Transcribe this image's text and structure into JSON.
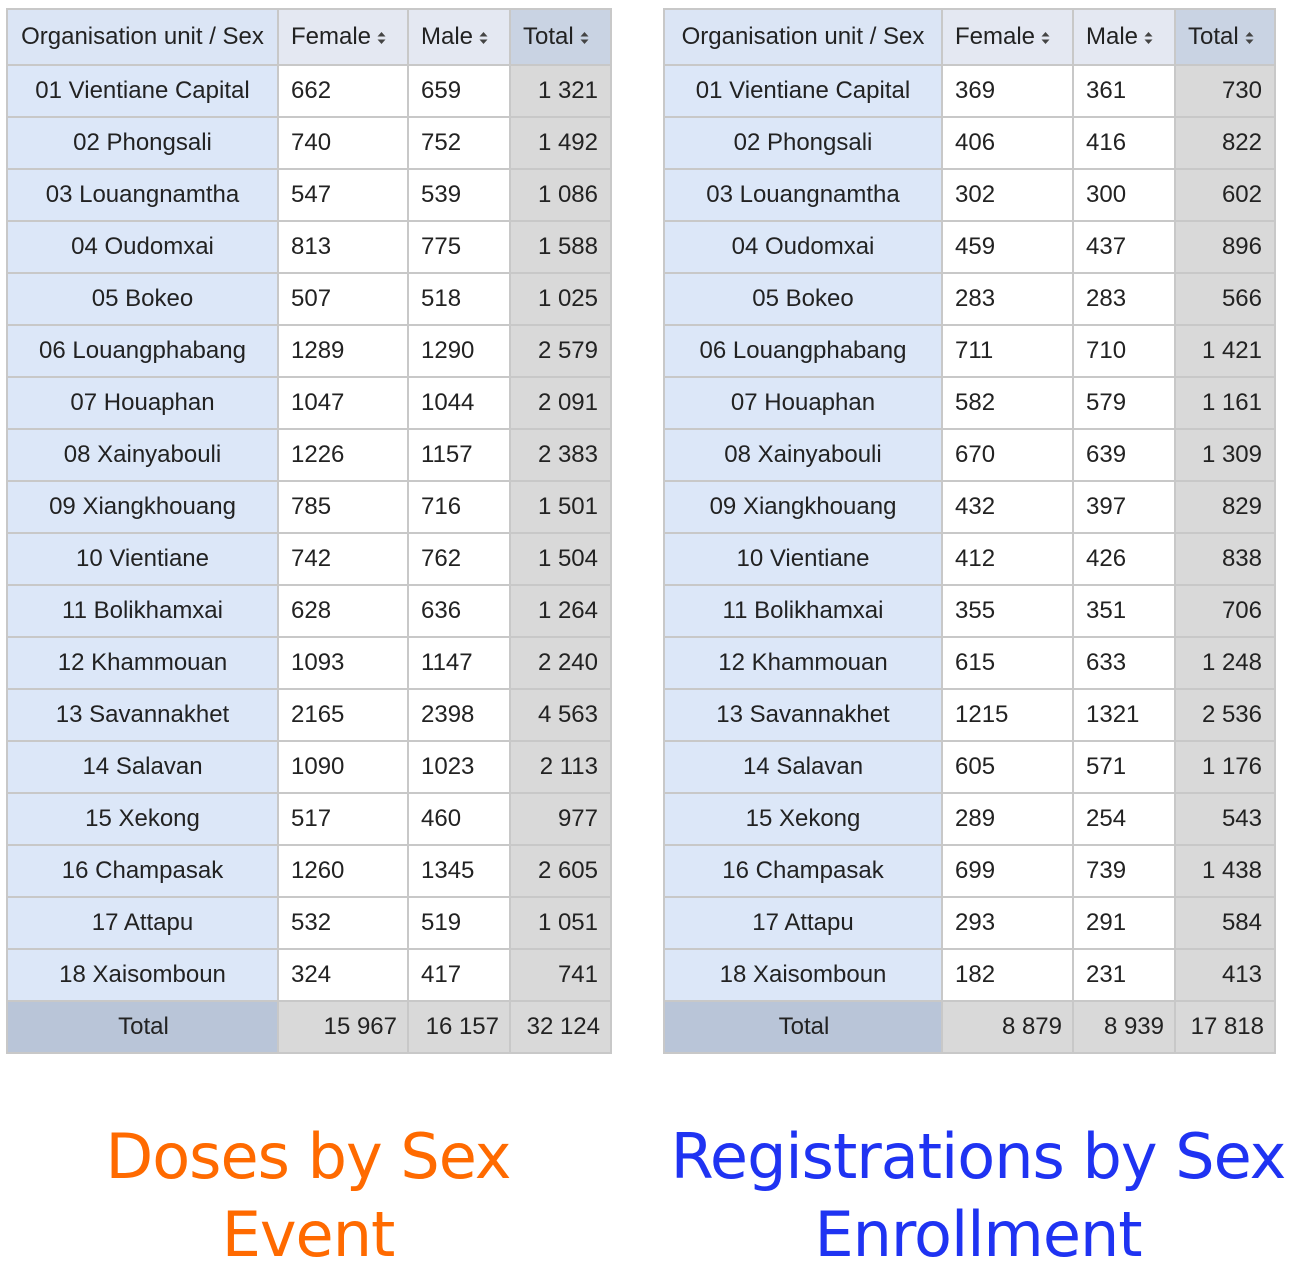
{
  "tables": [
    {
      "headers": {
        "org": "Organisation unit / Sex",
        "female": "Female",
        "male": "Male",
        "total": "Total"
      },
      "rows": [
        {
          "org": "01 Vientiane Capital",
          "female": "662",
          "male": "659",
          "total": "1 321"
        },
        {
          "org": "02 Phongsali",
          "female": "740",
          "male": "752",
          "total": "1 492"
        },
        {
          "org": "03 Louangnamtha",
          "female": "547",
          "male": "539",
          "total": "1 086"
        },
        {
          "org": "04 Oudomxai",
          "female": "813",
          "male": "775",
          "total": "1 588"
        },
        {
          "org": "05 Bokeo",
          "female": "507",
          "male": "518",
          "total": "1 025"
        },
        {
          "org": "06 Louangphabang",
          "female": "1289",
          "male": "1290",
          "total": "2 579"
        },
        {
          "org": "07 Houaphan",
          "female": "1047",
          "male": "1044",
          "total": "2 091"
        },
        {
          "org": "08 Xainyabouli",
          "female": "1226",
          "male": "1157",
          "total": "2 383"
        },
        {
          "org": "09 Xiangkhouang",
          "female": "785",
          "male": "716",
          "total": "1 501"
        },
        {
          "org": "10 Vientiane",
          "female": "742",
          "male": "762",
          "total": "1 504"
        },
        {
          "org": "11 Bolikhamxai",
          "female": "628",
          "male": "636",
          "total": "1 264"
        },
        {
          "org": "12 Khammouan",
          "female": "1093",
          "male": "1147",
          "total": "2 240"
        },
        {
          "org": "13 Savannakhet",
          "female": "2165",
          "male": "2398",
          "total": "4 563"
        },
        {
          "org": "14 Salavan",
          "female": "1090",
          "male": "1023",
          "total": "2 113"
        },
        {
          "org": "15 Xekong",
          "female": "517",
          "male": "460",
          "total": "977"
        },
        {
          "org": "16 Champasak",
          "female": "1260",
          "male": "1345",
          "total": "2 605"
        },
        {
          "org": "17 Attapu",
          "female": "532",
          "male": "519",
          "total": "1 051"
        },
        {
          "org": "18 Xaisomboun",
          "female": "324",
          "male": "417",
          "total": "741"
        }
      ],
      "total_row": {
        "label": "Total",
        "female": "15 967",
        "male": "16 157",
        "total": "32 124"
      },
      "caption": {
        "line1": "Doses by Sex",
        "line2": "Event"
      }
    },
    {
      "headers": {
        "org": "Organisation unit / Sex",
        "female": "Female",
        "male": "Male",
        "total": "Total"
      },
      "rows": [
        {
          "org": "01 Vientiane Capital",
          "female": "369",
          "male": "361",
          "total": "730"
        },
        {
          "org": "02 Phongsali",
          "female": "406",
          "male": "416",
          "total": "822"
        },
        {
          "org": "03 Louangnamtha",
          "female": "302",
          "male": "300",
          "total": "602"
        },
        {
          "org": "04 Oudomxai",
          "female": "459",
          "male": "437",
          "total": "896"
        },
        {
          "org": "05 Bokeo",
          "female": "283",
          "male": "283",
          "total": "566"
        },
        {
          "org": "06 Louangphabang",
          "female": "711",
          "male": "710",
          "total": "1 421"
        },
        {
          "org": "07 Houaphan",
          "female": "582",
          "male": "579",
          "total": "1 161"
        },
        {
          "org": "08 Xainyabouli",
          "female": "670",
          "male": "639",
          "total": "1 309"
        },
        {
          "org": "09 Xiangkhouang",
          "female": "432",
          "male": "397",
          "total": "829"
        },
        {
          "org": "10 Vientiane",
          "female": "412",
          "male": "426",
          "total": "838"
        },
        {
          "org": "11 Bolikhamxai",
          "female": "355",
          "male": "351",
          "total": "706"
        },
        {
          "org": "12 Khammouan",
          "female": "615",
          "male": "633",
          "total": "1 248"
        },
        {
          "org": "13 Savannakhet",
          "female": "1215",
          "male": "1321",
          "total": "2 536"
        },
        {
          "org": "14 Salavan",
          "female": "605",
          "male": "571",
          "total": "1 176"
        },
        {
          "org": "15 Xekong",
          "female": "289",
          "male": "254",
          "total": "543"
        },
        {
          "org": "16 Champasak",
          "female": "699",
          "male": "739",
          "total": "1 438"
        },
        {
          "org": "17 Attapu",
          "female": "293",
          "male": "291",
          "total": "584"
        },
        {
          "org": "18 Xaisomboun",
          "female": "182",
          "male": "231",
          "total": "413"
        }
      ],
      "total_row": {
        "label": "Total",
        "female": "8 879",
        "male": "8 939",
        "total": "17 818"
      },
      "caption": {
        "line1": "Registrations by Sex",
        "line2": "Enrollment"
      }
    }
  ],
  "colors": {
    "left_caption": "#ff6a00",
    "right_caption": "#1f33f2",
    "org_cell": "#dce7f8",
    "total_cell": "#d9d9d9",
    "total_label_cell": "#b9c5d8"
  },
  "icons": {
    "sort": "sort-updown-icon"
  }
}
